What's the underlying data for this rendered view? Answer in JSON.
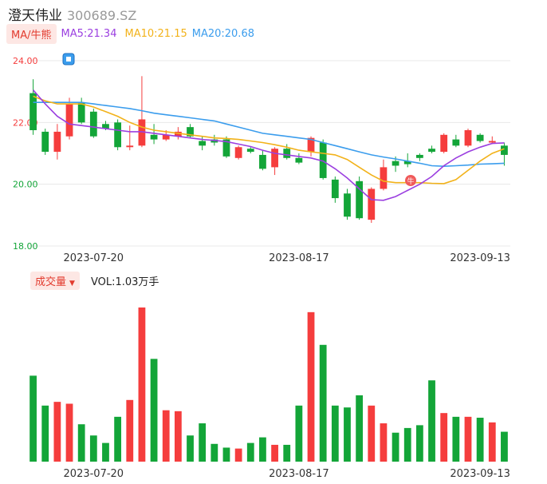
{
  "header": {
    "stock_name": "澄天伟业",
    "stock_code": "300689.SZ"
  },
  "indicators": {
    "ma_button": "MA/牛熊",
    "ma5": "MA5:21.34",
    "ma10": "MA10:21.15",
    "ma20": "MA20:20.68"
  },
  "volume_panel": {
    "button": "成交量",
    "vol_text": "VOL:1.03万手"
  },
  "colors": {
    "up": "#f53d3d",
    "down": "#13a538",
    "ma5": "#9b3fe0",
    "ma10": "#f2b21a",
    "ma20": "#3b9ded",
    "grid": "#e8e8e8"
  },
  "chart_data": [
    {
      "type": "candlestick",
      "y_ticks": [
        "24.00",
        "22.00",
        "20.00",
        "18.00"
      ],
      "ylim": [
        18,
        24
      ],
      "x_tick_labels": [
        "2023-07-20",
        "2023-08-17",
        "2023-09-13"
      ],
      "candles": [
        {
          "o": 22.95,
          "h": 23.4,
          "l": 21.6,
          "c": 21.75
        },
        {
          "o": 21.7,
          "h": 21.8,
          "l": 20.95,
          "c": 21.05
        },
        {
          "o": 21.05,
          "h": 21.95,
          "l": 20.8,
          "c": 21.7
        },
        {
          "o": 21.55,
          "h": 22.8,
          "l": 21.45,
          "c": 22.6
        },
        {
          "o": 22.65,
          "h": 22.8,
          "l": 21.95,
          "c": 22.0
        },
        {
          "o": 22.35,
          "h": 22.45,
          "l": 21.5,
          "c": 21.55
        },
        {
          "o": 21.95,
          "h": 22.05,
          "l": 21.75,
          "c": 21.8
        },
        {
          "o": 22.0,
          "h": 22.1,
          "l": 21.1,
          "c": 21.2
        },
        {
          "o": 21.2,
          "h": 21.9,
          "l": 21.1,
          "c": 21.25
        },
        {
          "o": 21.25,
          "h": 23.5,
          "l": 21.2,
          "c": 22.1
        },
        {
          "o": 21.6,
          "h": 21.95,
          "l": 21.3,
          "c": 21.45
        },
        {
          "o": 21.45,
          "h": 21.75,
          "l": 21.4,
          "c": 21.6
        },
        {
          "o": 21.55,
          "h": 21.85,
          "l": 21.45,
          "c": 21.7
        },
        {
          "o": 21.85,
          "h": 21.95,
          "l": 21.5,
          "c": 21.55
        },
        {
          "o": 21.4,
          "h": 21.55,
          "l": 21.1,
          "c": 21.25
        },
        {
          "o": 21.45,
          "h": 21.6,
          "l": 21.25,
          "c": 21.35
        },
        {
          "o": 21.45,
          "h": 21.55,
          "l": 20.85,
          "c": 20.9
        },
        {
          "o": 20.85,
          "h": 21.25,
          "l": 20.8,
          "c": 21.2
        },
        {
          "o": 21.15,
          "h": 21.2,
          "l": 21.0,
          "c": 21.05
        },
        {
          "o": 20.95,
          "h": 21.1,
          "l": 20.45,
          "c": 20.5
        },
        {
          "o": 20.55,
          "h": 21.2,
          "l": 20.3,
          "c": 21.15
        },
        {
          "o": 21.15,
          "h": 21.3,
          "l": 20.8,
          "c": 20.85
        },
        {
          "o": 20.85,
          "h": 21.0,
          "l": 20.65,
          "c": 20.7
        },
        {
          "o": 21.05,
          "h": 21.55,
          "l": 20.9,
          "c": 21.5
        },
        {
          "o": 21.35,
          "h": 21.45,
          "l": 20.15,
          "c": 20.2
        },
        {
          "o": 20.15,
          "h": 20.25,
          "l": 19.4,
          "c": 19.55
        },
        {
          "o": 19.7,
          "h": 19.85,
          "l": 18.85,
          "c": 18.95
        },
        {
          "o": 20.1,
          "h": 20.25,
          "l": 18.85,
          "c": 18.9
        },
        {
          "o": 18.85,
          "h": 19.9,
          "l": 18.75,
          "c": 19.85
        },
        {
          "o": 19.85,
          "h": 20.8,
          "l": 19.8,
          "c": 20.55
        },
        {
          "o": 20.75,
          "h": 20.9,
          "l": 20.4,
          "c": 20.6
        },
        {
          "o": 20.75,
          "h": 21.0,
          "l": 20.55,
          "c": 20.65
        },
        {
          "o": 20.95,
          "h": 21.0,
          "l": 20.75,
          "c": 20.85
        },
        {
          "o": 21.15,
          "h": 21.25,
          "l": 21.0,
          "c": 21.05
        },
        {
          "o": 21.05,
          "h": 21.65,
          "l": 21.0,
          "c": 21.6
        },
        {
          "o": 21.45,
          "h": 21.6,
          "l": 21.2,
          "c": 21.25
        },
        {
          "o": 21.25,
          "h": 21.8,
          "l": 21.2,
          "c": 21.75
        },
        {
          "o": 21.6,
          "h": 21.65,
          "l": 21.35,
          "c": 21.4
        },
        {
          "o": 21.35,
          "h": 21.55,
          "l": 21.3,
          "c": 21.4
        },
        {
          "o": 21.25,
          "h": 21.35,
          "l": 20.6,
          "c": 20.95
        }
      ],
      "ma5": [
        23.05,
        22.6,
        22.2,
        21.95,
        21.9,
        21.85,
        21.8,
        21.75,
        21.7,
        21.7,
        21.65,
        21.6,
        21.55,
        21.5,
        21.45,
        21.42,
        21.38,
        21.3,
        21.22,
        21.1,
        21.0,
        20.95,
        20.9,
        20.85,
        20.75,
        20.5,
        20.2,
        19.85,
        19.5,
        19.48,
        19.6,
        19.8,
        20.0,
        20.25,
        20.6,
        20.85,
        21.05,
        21.2,
        21.32,
        21.34
      ],
      "ma10": [
        22.85,
        22.7,
        22.6,
        22.6,
        22.6,
        22.5,
        22.35,
        22.2,
        22.0,
        21.85,
        21.75,
        21.7,
        21.65,
        21.6,
        21.55,
        21.5,
        21.48,
        21.45,
        21.4,
        21.35,
        21.28,
        21.2,
        21.1,
        21.05,
        21.0,
        20.95,
        20.8,
        20.55,
        20.3,
        20.1,
        20.05,
        20.05,
        20.05,
        20.03,
        20.02,
        20.15,
        20.45,
        20.75,
        21.0,
        21.15
      ],
      "ma20": [
        22.65,
        22.65,
        22.65,
        22.65,
        22.65,
        22.6,
        22.55,
        22.5,
        22.45,
        22.38,
        22.3,
        22.25,
        22.2,
        22.15,
        22.1,
        22.05,
        21.95,
        21.85,
        21.75,
        21.65,
        21.6,
        21.55,
        21.5,
        21.45,
        21.35,
        21.25,
        21.15,
        21.05,
        20.95,
        20.88,
        20.82,
        20.75,
        20.68,
        20.6,
        20.58,
        20.6,
        20.62,
        20.65,
        20.66,
        20.68
      ],
      "volume": [
        92,
        60,
        64,
        62,
        40,
        28,
        20,
        48,
        66,
        165,
        110,
        55,
        54,
        28,
        41,
        19,
        15,
        14,
        20,
        26,
        18,
        18,
        60,
        160,
        125,
        60,
        58,
        71,
        60,
        41,
        31,
        36,
        39,
        87,
        52,
        48,
        48,
        47,
        42,
        32
      ]
    }
  ]
}
